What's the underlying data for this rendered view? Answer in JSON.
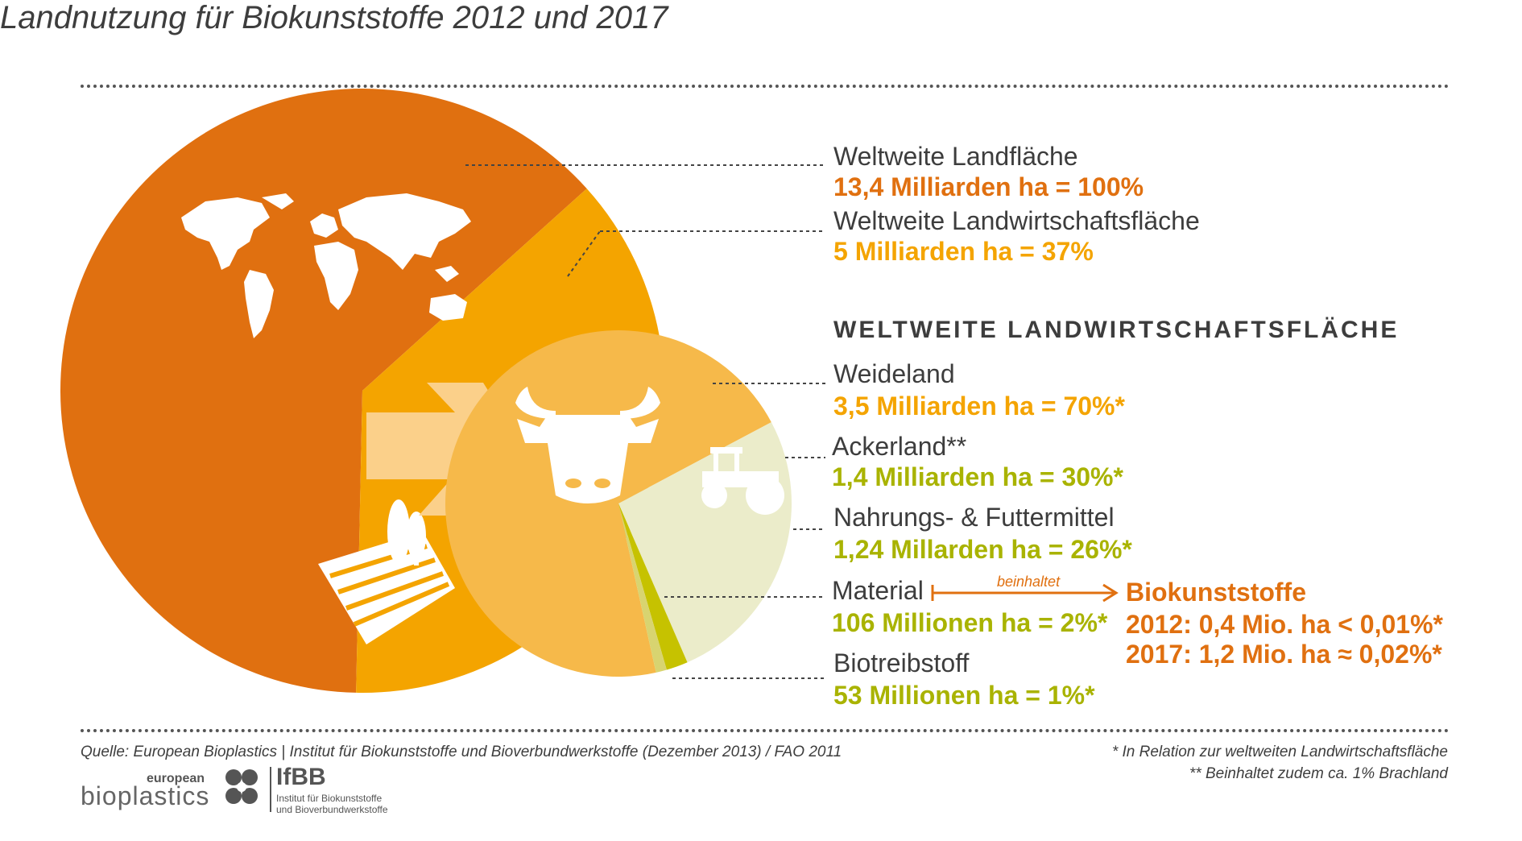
{
  "title": "Landnutzung für Biokunststoffe 2012 und 2017",
  "colors": {
    "world": "#e07010",
    "agri": "#f4a400",
    "pasture": "#f6b94a",
    "arable": "#e7e8c4",
    "food": "#ebecca",
    "material": "#c6c200",
    "biofuel": "#d8d470",
    "orange_text": "#e07010",
    "yellow_text": "#f4a400",
    "green_text": "#a9b300"
  },
  "labels": {
    "world_label": "Weltweite Landfläche",
    "world_value": "13,4 Milliarden ha = 100%",
    "agri_label": "Weltweite Landwirtschaftsfläche",
    "agri_value": "5 Milliarden ha = 37%",
    "section_heading": "WELTWEITE LANDWIRTSCHAFTSFLÄCHE",
    "pasture_label": "Weideland",
    "pasture_value": "3,5 Milliarden ha = 70%*",
    "arable_label": "Ackerland**",
    "arable_value": "1,4 Milliarden ha = 30%*",
    "food_label": "Nahrungs- & Futtermittel",
    "food_value": "1,24 Millarden ha = 26%*",
    "material_label": "Material",
    "material_value": "106 Millionen ha = 2%*",
    "contains": "beinhaltet",
    "bioplastics_label": "Biokunststoffe",
    "bioplastics_2012": "2012: 0,4 Mio. ha < 0,01%*",
    "bioplastics_2017": "2017: 1,2 Mio. ha ≈ 0,02%*",
    "biofuel_label": "Biotreibstoff",
    "biofuel_value": "53 Millionen ha = 1%*"
  },
  "footer": {
    "source": "Quelle: European Bioplastics | Institut für Biokunststoffe und Bioverbundwerkstoffe (Dezember 2013) / FAO 2011",
    "note1": "* In Relation zur weltweiten Landwirtschaftsfläche",
    "note2": "** Beinhaltet zudem ca. 1% Brachland",
    "logo_bio_small": "european",
    "logo_bio": "bioplastics",
    "logo_ifbb": "IfBB",
    "logo_ifbb_sub1": "Institut für Biokunststoffe",
    "logo_ifbb_sub2": "und Bioverbundwerkstoffe"
  },
  "chart_data": [
    {
      "type": "pie",
      "title": "Weltweite Landfläche",
      "slices": [
        {
          "name": "Weltweite Landfläche",
          "value": 63,
          "unit": "%"
        },
        {
          "name": "Weltweite Landwirtschaftsfläche",
          "value": 37,
          "unit": "%"
        }
      ]
    },
    {
      "type": "pie",
      "title": "WELTWEITE LANDWIRTSCHAFTSFLÄCHE",
      "slices": [
        {
          "name": "Weideland",
          "value": 70,
          "unit": "%"
        },
        {
          "name": "Nahrungs- & Futtermittel",
          "value": 26,
          "unit": "%"
        },
        {
          "name": "Material",
          "value": 2,
          "unit": "%"
        },
        {
          "name": "Biotreibstoff",
          "value": 1,
          "unit": "%"
        }
      ]
    }
  ],
  "icons": [
    "world-map-icon",
    "field-trees-icon",
    "arrow-icon",
    "cow-icon",
    "tractor-icon"
  ]
}
